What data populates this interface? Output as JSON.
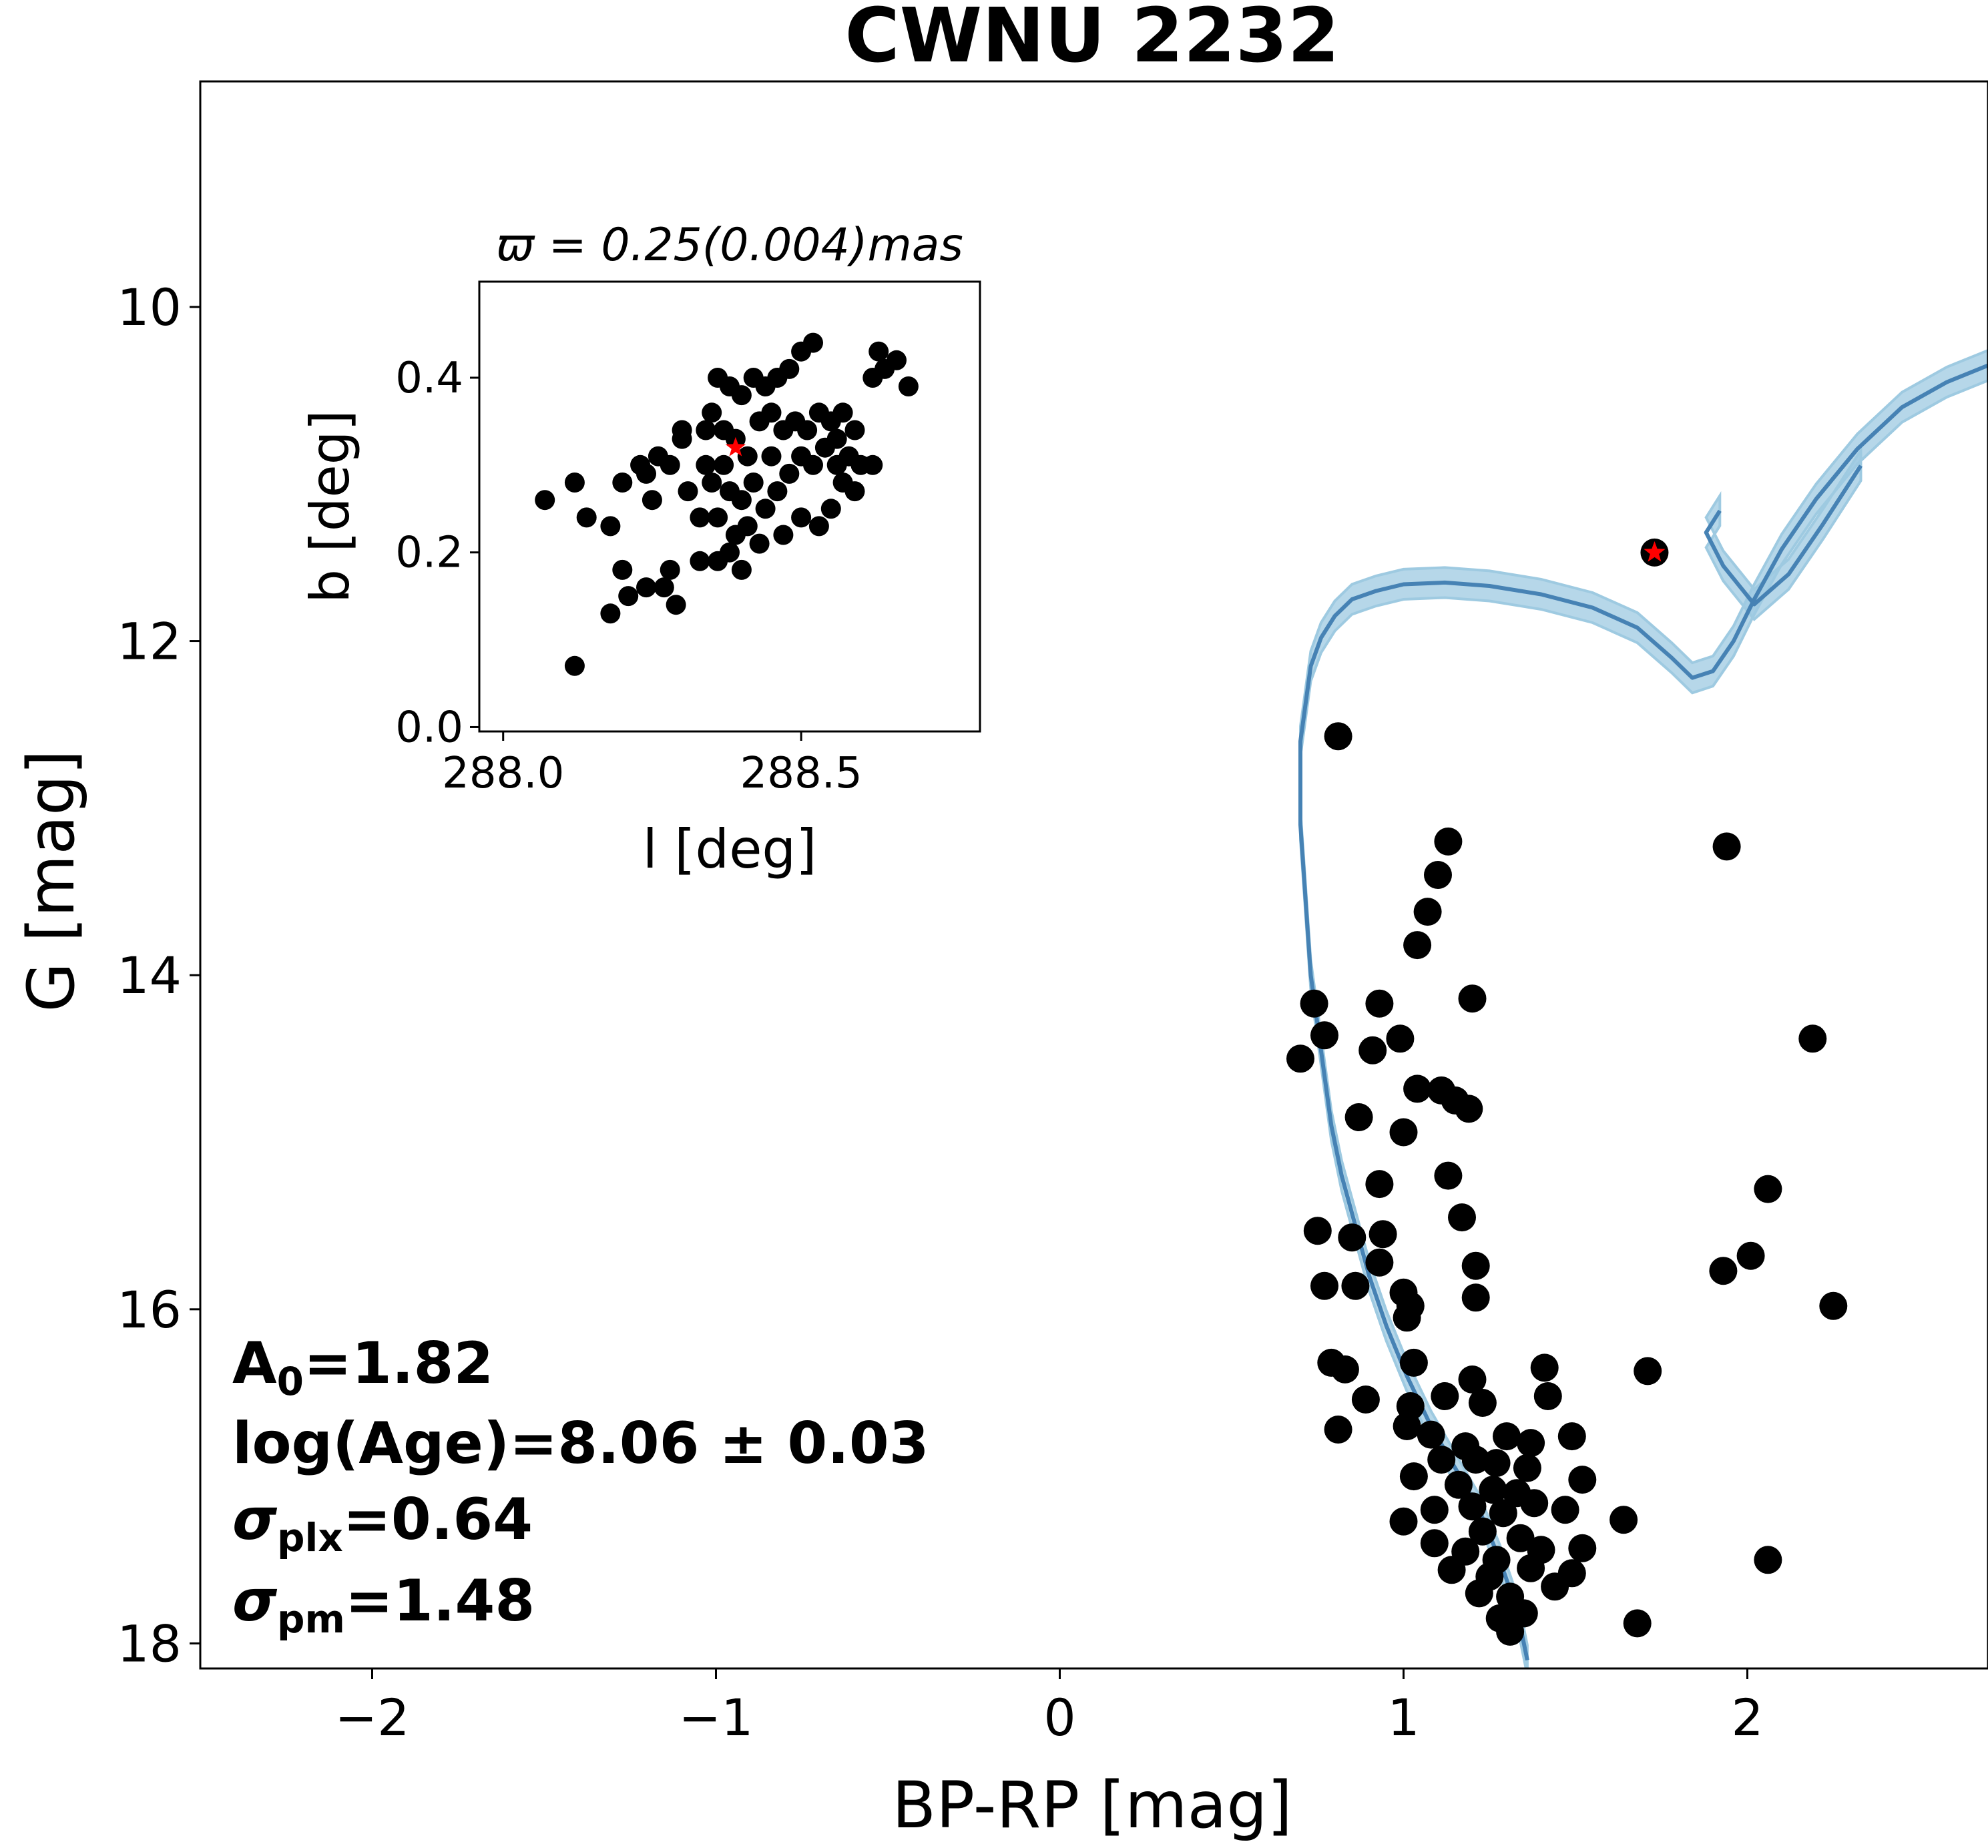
{
  "chart_data": [
    {
      "type": "scatter",
      "title": "CWNU 2232",
      "xlabel": "BP-RP [mag]",
      "ylabel": "G [mag]",
      "xlim": [
        -2.5,
        2.7
      ],
      "ylim": [
        18.15,
        8.65
      ],
      "y_inverted": true,
      "xticks": [
        -2,
        -1,
        0,
        1,
        2
      ],
      "xtick_labels": [
        "−2",
        "−1",
        "0",
        "1",
        "2"
      ],
      "yticks": [
        10,
        12,
        14,
        16,
        18
      ],
      "ytick_labels": [
        "10",
        "12",
        "14",
        "16",
        "18"
      ],
      "point_color": "#000000",
      "isochrone_color": "#4682b4",
      "isochrone_band_color": "#9ecae1",
      "highlight_color": "#ff0000",
      "annotations": [
        {
          "label": "A",
          "sub": "0",
          "value": "=1.82"
        },
        {
          "label": "log(Age)=8.06 ± 0.03",
          "sub": "",
          "value": ""
        },
        {
          "label": "σ",
          "sub": "plx",
          "value": "=0.64"
        },
        {
          "label": "σ",
          "sub": "pm",
          "value": "=1.48"
        }
      ],
      "highlighted_star": {
        "x": 1.73,
        "y": 11.47
      },
      "isochrone_band_halfwidth": 0.09,
      "isochrone": {
        "x": [
          1.36,
          1.33,
          1.28,
          1.22,
          1.15,
          1.08,
          1.01,
          0.95,
          0.9,
          0.86,
          0.82,
          0.79,
          0.77,
          0.75,
          0.73,
          0.72,
          0.71,
          0.7,
          0.7,
          0.7,
          0.7,
          0.71,
          0.72,
          0.73,
          0.76,
          0.8,
          0.85,
          0.92,
          1.0,
          1.12,
          1.25,
          1.4,
          1.55,
          1.68,
          1.78,
          1.84,
          1.9,
          1.96,
          2.02,
          2.1,
          2.2,
          2.32,
          2.45,
          2.58,
          2.7
        ],
        "y": [
          18.1,
          17.8,
          17.5,
          17.2,
          16.95,
          16.7,
          16.4,
          16.1,
          15.8,
          15.5,
          15.2,
          14.9,
          14.6,
          14.3,
          14.0,
          13.7,
          13.4,
          13.1,
          12.85,
          12.72,
          12.6,
          12.45,
          12.3,
          12.15,
          11.98,
          11.85,
          11.75,
          11.7,
          11.66,
          11.65,
          11.67,
          11.72,
          11.8,
          11.92,
          12.1,
          12.22,
          12.18,
          12.0,
          11.75,
          11.45,
          11.15,
          10.85,
          10.6,
          10.45,
          10.35
        ]
      },
      "hook": {
        "x": [
          1.92,
          1.88,
          1.93,
          2.02,
          2.12,
          2.22,
          2.33
        ],
        "y": [
          11.22,
          11.35,
          11.55,
          11.78,
          11.6,
          11.3,
          10.95
        ]
      },
      "points": [
        [
          0.81,
          12.57
        ],
        [
          1.13,
          13.2
        ],
        [
          1.1,
          13.4
        ],
        [
          1.07,
          13.62
        ],
        [
          1.04,
          13.82
        ],
        [
          1.94,
          13.23
        ],
        [
          0.74,
          14.17
        ],
        [
          0.77,
          14.36
        ],
        [
          0.7,
          14.5
        ],
        [
          0.93,
          14.17
        ],
        [
          0.99,
          14.38
        ],
        [
          0.91,
          14.45
        ],
        [
          1.2,
          14.14
        ],
        [
          2.19,
          14.38
        ],
        [
          1.04,
          14.68
        ],
        [
          1.11,
          14.69
        ],
        [
          1.15,
          14.75
        ],
        [
          1.19,
          14.8
        ],
        [
          0.87,
          14.85
        ],
        [
          1.0,
          14.94
        ],
        [
          1.13,
          15.2
        ],
        [
          0.93,
          15.25
        ],
        [
          1.17,
          15.45
        ],
        [
          0.75,
          15.53
        ],
        [
          0.85,
          15.57
        ],
        [
          0.94,
          15.55
        ],
        [
          2.06,
          15.28
        ],
        [
          0.93,
          15.72
        ],
        [
          1.21,
          15.74
        ],
        [
          2.01,
          15.68
        ],
        [
          1.93,
          15.77
        ],
        [
          0.77,
          15.86
        ],
        [
          0.86,
          15.86
        ],
        [
          1.0,
          15.9
        ],
        [
          1.21,
          15.93
        ],
        [
          1.02,
          15.98
        ],
        [
          1.01,
          16.05
        ],
        [
          2.25,
          15.98
        ],
        [
          0.79,
          16.32
        ],
        [
          0.83,
          16.36
        ],
        [
          1.03,
          16.32
        ],
        [
          1.2,
          16.42
        ],
        [
          1.41,
          16.35
        ],
        [
          1.71,
          16.37
        ],
        [
          0.89,
          16.54
        ],
        [
          1.02,
          16.58
        ],
        [
          1.12,
          16.52
        ],
        [
          1.23,
          16.56
        ],
        [
          1.42,
          16.52
        ],
        [
          0.81,
          16.72
        ],
        [
          1.01,
          16.7
        ],
        [
          1.08,
          16.75
        ],
        [
          1.18,
          16.82
        ],
        [
          1.3,
          16.76
        ],
        [
          1.37,
          16.8
        ],
        [
          1.49,
          16.76
        ],
        [
          1.11,
          16.9
        ],
        [
          1.21,
          16.9
        ],
        [
          1.27,
          16.92
        ],
        [
          1.36,
          16.95
        ],
        [
          1.03,
          17.0
        ],
        [
          1.16,
          17.05
        ],
        [
          1.26,
          17.08
        ],
        [
          1.33,
          17.1
        ],
        [
          1.52,
          17.02
        ],
        [
          1.09,
          17.2
        ],
        [
          1.2,
          17.18
        ],
        [
          1.29,
          17.22
        ],
        [
          1.38,
          17.16
        ],
        [
          1.47,
          17.2
        ],
        [
          1.0,
          17.27
        ],
        [
          1.23,
          17.33
        ],
        [
          1.34,
          17.37
        ],
        [
          1.64,
          17.26
        ],
        [
          1.09,
          17.4
        ],
        [
          1.18,
          17.45
        ],
        [
          1.27,
          17.5
        ],
        [
          1.4,
          17.44
        ],
        [
          1.52,
          17.43
        ],
        [
          2.06,
          17.5
        ],
        [
          1.14,
          17.56
        ],
        [
          1.25,
          17.6
        ],
        [
          1.37,
          17.55
        ],
        [
          1.49,
          17.58
        ],
        [
          1.22,
          17.7
        ],
        [
          1.31,
          17.72
        ],
        [
          1.44,
          17.66
        ],
        [
          1.28,
          17.85
        ],
        [
          1.35,
          17.82
        ],
        [
          1.68,
          17.88
        ],
        [
          1.31,
          17.93
        ]
      ]
    },
    {
      "type": "scatter",
      "title": "ϖ = 0.25(0.004)mas",
      "xlabel": "l [deg]",
      "ylabel": "b [deg]",
      "xlim": [
        287.96,
        288.8
      ],
      "ylim": [
        -0.005,
        0.51
      ],
      "xticks": [
        288.0,
        288.5
      ],
      "xtick_labels": [
        "288.0",
        "288.5"
      ],
      "yticks": [
        0.0,
        0.2,
        0.4
      ],
      "ytick_labels": [
        "0.0",
        "0.2",
        "0.4"
      ],
      "center_star": {
        "x": 288.39,
        "y": 0.32
      },
      "points": [
        [
          288.07,
          0.26
        ],
        [
          288.12,
          0.28
        ],
        [
          288.14,
          0.24
        ],
        [
          288.18,
          0.23
        ],
        [
          288.2,
          0.28
        ],
        [
          288.12,
          0.07
        ],
        [
          288.18,
          0.13
        ],
        [
          288.2,
          0.18
        ],
        [
          288.21,
          0.15
        ],
        [
          288.24,
          0.16
        ],
        [
          288.27,
          0.16
        ],
        [
          288.29,
          0.14
        ],
        [
          288.28,
          0.18
        ],
        [
          288.33,
          0.19
        ],
        [
          288.36,
          0.19
        ],
        [
          288.38,
          0.2
        ],
        [
          288.4,
          0.18
        ],
        [
          288.24,
          0.29
        ],
        [
          288.26,
          0.31
        ],
        [
          288.28,
          0.3
        ],
        [
          288.3,
          0.33
        ],
        [
          288.25,
          0.26
        ],
        [
          288.23,
          0.3
        ],
        [
          288.3,
          0.34
        ],
        [
          288.34,
          0.34
        ],
        [
          288.36,
          0.4
        ],
        [
          288.38,
          0.39
        ],
        [
          288.4,
          0.38
        ],
        [
          288.42,
          0.4
        ],
        [
          288.44,
          0.39
        ],
        [
          288.46,
          0.4
        ],
        [
          288.48,
          0.41
        ],
        [
          288.5,
          0.43
        ],
        [
          288.52,
          0.44
        ],
        [
          288.35,
          0.36
        ],
        [
          288.37,
          0.34
        ],
        [
          288.39,
          0.33
        ],
        [
          288.41,
          0.31
        ],
        [
          288.43,
          0.35
        ],
        [
          288.45,
          0.36
        ],
        [
          288.47,
          0.34
        ],
        [
          288.49,
          0.35
        ],
        [
          288.51,
          0.34
        ],
        [
          288.53,
          0.36
        ],
        [
          288.55,
          0.35
        ],
        [
          288.57,
          0.36
        ],
        [
          288.59,
          0.34
        ],
        [
          288.35,
          0.28
        ],
        [
          288.37,
          0.3
        ],
        [
          288.4,
          0.26
        ],
        [
          288.42,
          0.28
        ],
        [
          288.44,
          0.25
        ],
        [
          288.46,
          0.27
        ],
        [
          288.48,
          0.29
        ],
        [
          288.5,
          0.31
        ],
        [
          288.52,
          0.3
        ],
        [
          288.54,
          0.32
        ],
        [
          288.56,
          0.33
        ],
        [
          288.58,
          0.31
        ],
        [
          288.6,
          0.3
        ],
        [
          288.33,
          0.24
        ],
        [
          288.36,
          0.24
        ],
        [
          288.39,
          0.22
        ],
        [
          288.41,
          0.23
        ],
        [
          288.43,
          0.21
        ],
        [
          288.47,
          0.22
        ],
        [
          288.5,
          0.24
        ],
        [
          288.53,
          0.23
        ],
        [
          288.55,
          0.25
        ],
        [
          288.57,
          0.28
        ],
        [
          288.59,
          0.27
        ],
        [
          288.63,
          0.43
        ],
        [
          288.64,
          0.41
        ],
        [
          288.66,
          0.42
        ],
        [
          288.62,
          0.4
        ],
        [
          288.68,
          0.39
        ],
        [
          288.31,
          0.27
        ],
        [
          288.34,
          0.3
        ],
        [
          288.38,
          0.27
        ],
        [
          288.45,
          0.31
        ],
        [
          288.56,
          0.3
        ],
        [
          288.62,
          0.3
        ]
      ]
    }
  ]
}
